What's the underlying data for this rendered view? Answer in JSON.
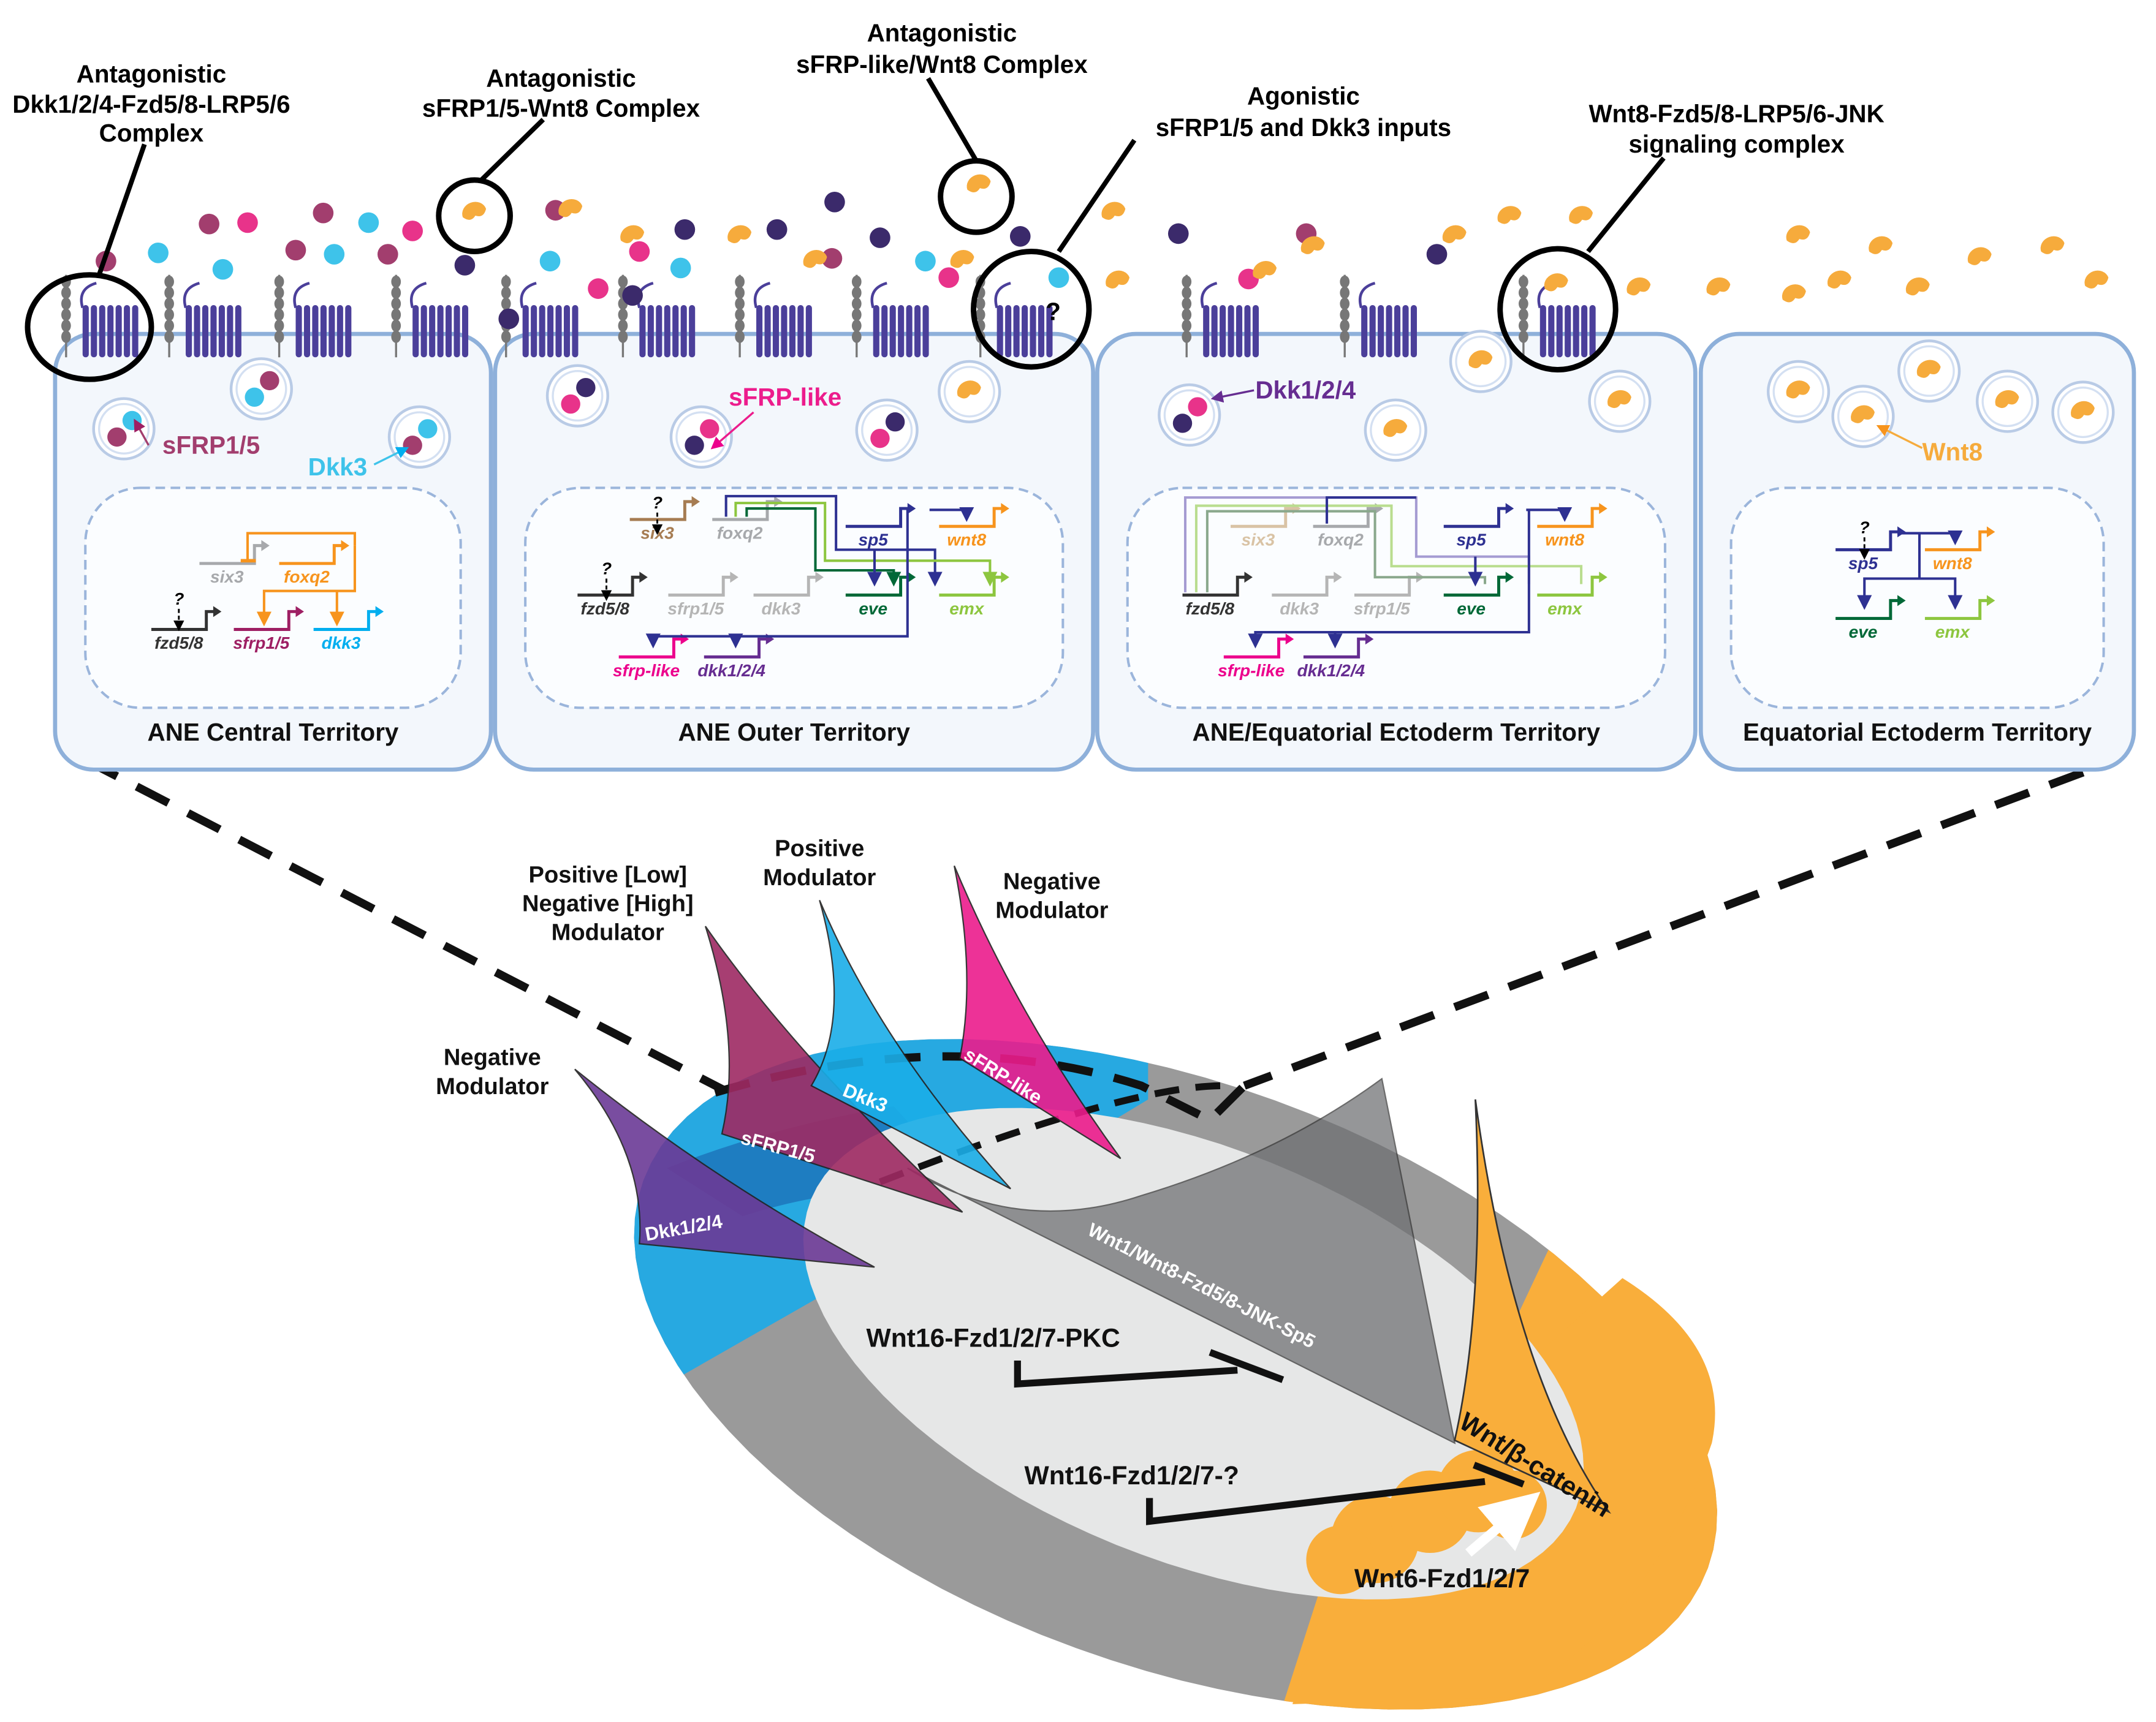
{
  "callouts": [
    {
      "lines": [
        "Antagonistic",
        "Dkk1/2/4-Fzd5/8-LRP5/6",
        "Complex"
      ]
    },
    {
      "lines": [
        "Antagonistic",
        "sFRP1/5-Wnt8 Complex"
      ]
    },
    {
      "lines": [
        "Antagonistic",
        "sFRP-like/Wnt8 Complex"
      ]
    },
    {
      "lines": [
        "Agonistic",
        "sFRP1/5 and Dkk3 inputs"
      ]
    },
    {
      "lines": [
        "Wnt8-Fzd5/8-LRP5/6-JNK",
        "signaling complex"
      ]
    }
  ],
  "question_mark": "?",
  "vesicle_labels": {
    "sfrp15": "sFRP1/5",
    "dkk3": "Dkk3",
    "sfrp_like": "sFRP-like",
    "dkk124": "Dkk1/2/4",
    "wnt8": "Wnt8"
  },
  "territories": [
    {
      "title": "ANE Central Territory",
      "genes": [
        {
          "name": "six3",
          "color": "#a7a9ac"
        },
        {
          "name": "foxq2",
          "color": "#f7941d"
        },
        {
          "name": "fzd5/8",
          "color": "#333333"
        },
        {
          "name": "sfrp1/5",
          "color": "#9e1f63"
        },
        {
          "name": "dkk3",
          "color": "#00aeef"
        }
      ]
    },
    {
      "title": "ANE Outer Territory",
      "genes": [
        {
          "name": "six3",
          "color": "#a67c52"
        },
        {
          "name": "foxq2",
          "color": "#a7a9ac"
        },
        {
          "name": "sp5",
          "color": "#2e3192"
        },
        {
          "name": "wnt8",
          "color": "#f7941d"
        },
        {
          "name": "fzd5/8",
          "color": "#333333"
        },
        {
          "name": "sfrp1/5",
          "color": "#b5b5b5"
        },
        {
          "name": "dkk3",
          "color": "#b5b5b5"
        },
        {
          "name": "eve",
          "color": "#006837"
        },
        {
          "name": "emx",
          "color": "#8dc63f"
        },
        {
          "name": "sfrp-like",
          "color": "#ec008c"
        },
        {
          "name": "dkk1/2/4",
          "color": "#662d91"
        }
      ]
    },
    {
      "title": "ANE/Equatorial Ectoderm Territory",
      "genes": [
        {
          "name": "six3",
          "color": "#d9c3a5"
        },
        {
          "name": "foxq2",
          "color": "#a7a9ac"
        },
        {
          "name": "sp5",
          "color": "#2e3192"
        },
        {
          "name": "wnt8",
          "color": "#f7941d"
        },
        {
          "name": "fzd5/8",
          "color": "#333333"
        },
        {
          "name": "dkk3",
          "color": "#b5b5b5"
        },
        {
          "name": "sfrp1/5",
          "color": "#b5b5b5"
        },
        {
          "name": "eve",
          "color": "#006837"
        },
        {
          "name": "emx",
          "color": "#8dc63f"
        },
        {
          "name": "sfrp-like",
          "color": "#ec008c"
        },
        {
          "name": "dkk1/2/4",
          "color": "#662d91"
        }
      ]
    },
    {
      "title": "Equatorial Ectoderm Territory",
      "genes": [
        {
          "name": "sp5",
          "color": "#2e3192"
        },
        {
          "name": "wnt8",
          "color": "#f7941d"
        },
        {
          "name": "eve",
          "color": "#006837"
        },
        {
          "name": "emx",
          "color": "#8dc63f"
        }
      ]
    }
  ],
  "modulators": [
    {
      "lines": [
        "Negative",
        "Modulator"
      ],
      "wedge_label": "Dkk1/2/4",
      "color": "#6b3a96"
    },
    {
      "lines": [
        "Positive [Low]",
        "Negative [High]",
        "Modulator"
      ],
      "wedge_label": "sFRP1/5",
      "color": "#9e2a63"
    },
    {
      "lines": [
        "Positive",
        "Modulator"
      ],
      "wedge_label": "Dkk3",
      "color": "#1aaee8"
    },
    {
      "lines": [
        "Negative",
        "Modulator"
      ],
      "wedge_label": "sFRP-like",
      "color": "#ec1c8c"
    }
  ],
  "pathways": {
    "jnk": "Wnt1/Wnt8-Fzd5/8-JNK-Sp5",
    "beta_catenin": "Wnt/β-catenin",
    "pkc": "Wnt16-Fzd1/2/7-PKC",
    "unknown": "Wnt16-Fzd1/2/7-?",
    "wnt6": "Wnt6-Fzd1/2/7"
  },
  "colors": {
    "maroon": "#a23e6e",
    "pink": "#e8338a",
    "cyan": "#3ec3ea",
    "dark_purple": "#3b2a6b",
    "wnt8_orange": "#f6ab3c",
    "receptor": "#4b3f9a",
    "ring_gray": "#9a9a9a",
    "ring_blue": "#27a9e1",
    "ring_orange": "#f9ae3b",
    "inner": "#e6e7e7",
    "cell_border": "#8eb0da",
    "cell_fill": "#f3f7fc"
  }
}
